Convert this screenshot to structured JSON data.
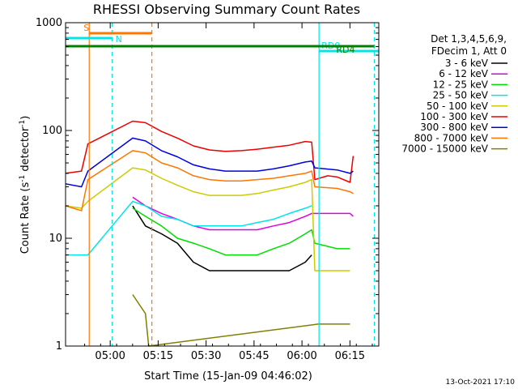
{
  "chart_data": {
    "type": "line",
    "title": "RHESSI Observing Summary Count Rates",
    "xlabel": "Start Time (15-Jan-09 04:46:02)",
    "ylabel_parts": {
      "main": "Count Rate (s",
      "sup1": "-1",
      "mid": " detector",
      "sup2": "-1",
      "end": ")"
    },
    "y_scale": "log",
    "ylim": [
      1,
      1000
    ],
    "x_unit": "minutes since 04:46:02",
    "xlim": [
      0,
      98
    ],
    "x_tick_labels": [
      "05:00",
      "05:15",
      "05:30",
      "05:45",
      "06:00",
      "06:15"
    ],
    "x_tick_positions": [
      13.97,
      28.97,
      43.97,
      58.97,
      73.97,
      88.97
    ],
    "y_tick_labels": [
      "1",
      "10",
      "100",
      "1000"
    ],
    "y_tick_values": [
      1,
      10,
      100,
      1000
    ],
    "legend_header": [
      "Det 1,3,4,5,6,9,",
      "FDecim 1, Att 0"
    ],
    "legend_position": "right",
    "series": [
      {
        "name": "3 - 6 keV",
        "color": "#000000",
        "pts": [
          [
            21,
            20
          ],
          [
            25,
            13
          ],
          [
            30,
            11
          ],
          [
            35,
            9
          ],
          [
            40,
            6
          ],
          [
            45,
            5
          ],
          [
            50,
            5
          ],
          [
            55,
            5
          ],
          [
            60,
            5
          ],
          [
            65,
            5
          ],
          [
            70,
            5
          ],
          [
            75,
            6
          ],
          [
            77,
            7
          ]
        ]
      },
      {
        "name": "6 - 12 keV",
        "color": "#e000e0",
        "pts": [
          [
            21,
            24
          ],
          [
            25,
            20
          ],
          [
            30,
            17
          ],
          [
            35,
            15
          ],
          [
            40,
            13
          ],
          [
            45,
            12
          ],
          [
            50,
            12
          ],
          [
            55,
            12
          ],
          [
            60,
            12
          ],
          [
            65,
            13
          ],
          [
            70,
            14
          ],
          [
            75,
            16
          ],
          [
            77,
            17
          ],
          [
            78,
            17
          ],
          [
            85,
            17
          ],
          [
            89,
            17
          ],
          [
            90,
            16
          ]
        ]
      },
      {
        "name": "12 - 25 keV",
        "color": "#00dd00",
        "pts": [
          [
            21,
            19
          ],
          [
            25,
            16
          ],
          [
            30,
            13
          ],
          [
            35,
            10
          ],
          [
            40,
            9
          ],
          [
            45,
            8
          ],
          [
            50,
            7
          ],
          [
            55,
            7
          ],
          [
            60,
            7
          ],
          [
            65,
            8
          ],
          [
            70,
            9
          ],
          [
            75,
            11
          ],
          [
            77,
            12
          ],
          [
            78,
            9
          ],
          [
            85,
            8
          ],
          [
            89,
            8
          ]
        ]
      },
      {
        "name": "25 - 50 keV",
        "color": "#00e5e5",
        "pts": [
          [
            0,
            7
          ],
          [
            5,
            7
          ],
          [
            7,
            7
          ],
          [
            21,
            22
          ],
          [
            25,
            20
          ],
          [
            30,
            16
          ],
          [
            35,
            15
          ],
          [
            40,
            13
          ],
          [
            45,
            13
          ],
          [
            50,
            13
          ],
          [
            55,
            13
          ],
          [
            60,
            14
          ],
          [
            65,
            15
          ],
          [
            70,
            17
          ],
          [
            75,
            19
          ],
          [
            77,
            20
          ]
        ]
      },
      {
        "name": "50 - 100 keV",
        "color": "#cccc00",
        "pts": [
          [
            0,
            20
          ],
          [
            5,
            19
          ],
          [
            7,
            22
          ],
          [
            21,
            45
          ],
          [
            25,
            43
          ],
          [
            30,
            36
          ],
          [
            35,
            31
          ],
          [
            40,
            27
          ],
          [
            45,
            25
          ],
          [
            50,
            25
          ],
          [
            55,
            25
          ],
          [
            60,
            26
          ],
          [
            65,
            28
          ],
          [
            70,
            30
          ],
          [
            75,
            33
          ],
          [
            77,
            35
          ],
          [
            78,
            5
          ],
          [
            89,
            5
          ]
        ]
      },
      {
        "name": "100 - 300 keV",
        "color": "#ee0000",
        "pts": [
          [
            0,
            40
          ],
          [
            5,
            42
          ],
          [
            7,
            75
          ],
          [
            21,
            122
          ],
          [
            25,
            118
          ],
          [
            30,
            98
          ],
          [
            35,
            85
          ],
          [
            40,
            72
          ],
          [
            45,
            66
          ],
          [
            50,
            64
          ],
          [
            55,
            65
          ],
          [
            60,
            67
          ],
          [
            65,
            70
          ],
          [
            70,
            73
          ],
          [
            75,
            79
          ],
          [
            77,
            78
          ],
          [
            78,
            35
          ],
          [
            82,
            38
          ],
          [
            85,
            37
          ],
          [
            89,
            33
          ],
          [
            90,
            58
          ]
        ]
      },
      {
        "name": "300 - 800 keV",
        "color": "#0000dd",
        "pts": [
          [
            0,
            32
          ],
          [
            5,
            30
          ],
          [
            7,
            42
          ],
          [
            21,
            85
          ],
          [
            25,
            80
          ],
          [
            30,
            65
          ],
          [
            35,
            57
          ],
          [
            40,
            48
          ],
          [
            45,
            44
          ],
          [
            50,
            42
          ],
          [
            55,
            42
          ],
          [
            60,
            42
          ],
          [
            65,
            44
          ],
          [
            70,
            47
          ],
          [
            75,
            51
          ],
          [
            77,
            52
          ],
          [
            78,
            45
          ],
          [
            85,
            43
          ],
          [
            89,
            40
          ],
          [
            90,
            42
          ]
        ]
      },
      {
        "name": "800 - 7000 keV",
        "color": "#ff7700",
        "pts": [
          [
            0,
            20
          ],
          [
            5,
            18
          ],
          [
            7,
            35
          ],
          [
            21,
            65
          ],
          [
            25,
            62
          ],
          [
            30,
            50
          ],
          [
            35,
            45
          ],
          [
            40,
            38
          ],
          [
            45,
            35
          ],
          [
            50,
            34
          ],
          [
            55,
            34
          ],
          [
            60,
            35
          ],
          [
            65,
            36
          ],
          [
            70,
            38
          ],
          [
            75,
            40
          ],
          [
            77,
            42
          ],
          [
            78,
            30
          ],
          [
            85,
            29
          ],
          [
            89,
            27
          ],
          [
            90,
            26
          ]
        ]
      },
      {
        "name": "7000 - 15000 keV",
        "color": "#808000",
        "pts": [
          [
            21,
            3
          ],
          [
            25,
            2
          ],
          [
            26,
            1
          ],
          [
            79,
            1.6
          ],
          [
            85,
            1.6
          ],
          [
            89,
            1.6
          ]
        ]
      }
    ],
    "annotations": {
      "bars": [
        {
          "label": "S",
          "color": "#ff7700",
          "x0": 7.4,
          "x1": 27.0
        },
        {
          "label": "N",
          "color": "#00e5e5",
          "x0": 0,
          "x1": 14.6
        },
        {
          "label": "RD0",
          "color": "#00e5e5",
          "x0": 79.3,
          "x1": 98
        },
        {
          "label": "RD4",
          "color": "#008000",
          "x0": 0,
          "x1": 96.6
        }
      ],
      "vlines": [
        {
          "x": 7.4,
          "color": "#ff7700",
          "dash": false
        },
        {
          "x": 14.6,
          "color": "#00e5e5",
          "dash": true
        },
        {
          "x": 27.0,
          "color": "#ff7700",
          "dash": true
        },
        {
          "x": 79.3,
          "color": "#00e5e5",
          "dash": false
        },
        {
          "x": 96.6,
          "color": "#00e5e5",
          "dash": true
        }
      ]
    },
    "footer": "13-Oct-2021 17:10"
  }
}
